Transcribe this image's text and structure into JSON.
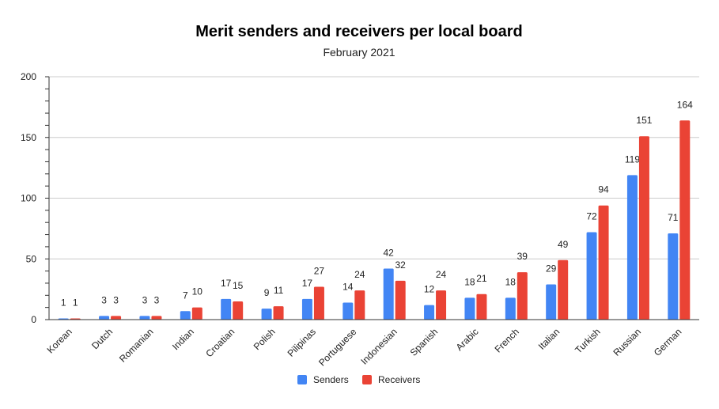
{
  "chart_data": {
    "type": "bar",
    "title": "Merit senders and receivers per local board",
    "subtitle": "February 2021",
    "categories": [
      "Korean",
      "Dutch",
      "Romanian",
      "Indian",
      "Croatian",
      "Polish",
      "Pilipinas",
      "Portuguese",
      "Indonesian",
      "Spanish",
      "Arabic",
      "French",
      "Italian",
      "Turkish",
      "Russian",
      "German"
    ],
    "series": [
      {
        "name": "Senders",
        "color": "#4285f4",
        "values": [
          1,
          3,
          3,
          7,
          17,
          9,
          17,
          14,
          42,
          12,
          18,
          18,
          29,
          72,
          119,
          71
        ]
      },
      {
        "name": "Receivers",
        "color": "#ea4335",
        "values": [
          1,
          3,
          3,
          10,
          15,
          11,
          27,
          24,
          32,
          24,
          21,
          39,
          49,
          94,
          151,
          164
        ]
      }
    ],
    "ylim": [
      0,
      200
    ],
    "yticks": [
      0,
      50,
      100,
      150,
      200
    ],
    "grid": true,
    "legend": "bottom"
  }
}
